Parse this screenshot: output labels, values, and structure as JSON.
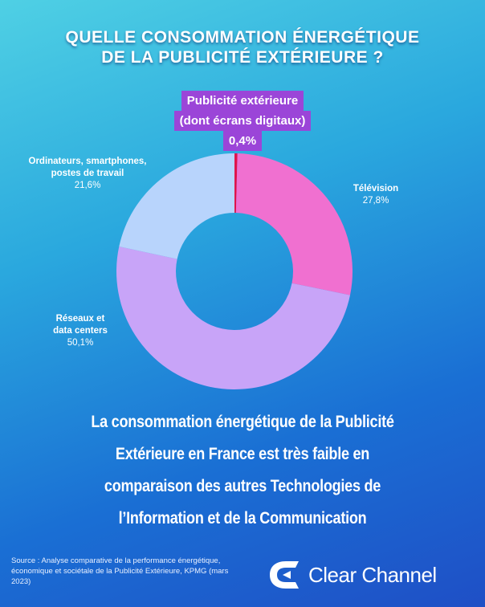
{
  "title": {
    "line1": "QUELLE CONSOMMATION ÉNERGÉTIQUE",
    "line2": "DE LA PUBLICITÉ EXTÉRIEURE ?"
  },
  "callout": {
    "line1": "Publicité extérieure",
    "line2": "(dont écrans digitaux)",
    "value": "0,4%"
  },
  "chart_data": {
    "type": "pie",
    "donut": true,
    "title": "QUELLE CONSOMMATION ÉNERGÉTIQUE DE LA PUBLICITÉ EXTÉRIEURE ?",
    "unit": "%",
    "slices": [
      {
        "label": "Publicité extérieure (dont écrans digitaux)",
        "value": 0.4,
        "value_label": "0,4%",
        "color": "#e0144c"
      },
      {
        "label": "Télévision",
        "value": 27.8,
        "value_label": "27,8%",
        "color": "#f070d0"
      },
      {
        "label": "Réseaux et data centers",
        "value": 50.1,
        "value_label": "50,1%",
        "color": "#c8a4f8"
      },
      {
        "label": "Ordinateurs, smartphones, postes de travail",
        "value": 21.6,
        "value_label": "21,6%",
        "color": "#b8d4fc"
      }
    ]
  },
  "labels": {
    "television": {
      "name": "Télévision",
      "pct": "27,8%"
    },
    "reseaux": {
      "line1": "Réseaux et",
      "line2": "data centers",
      "pct": "50,1%"
    },
    "ordinateurs": {
      "line1": "Ordinateurs, smartphones,",
      "line2": "postes de travail",
      "pct": "21,6%"
    }
  },
  "message": {
    "line1": "La consommation énergétique de la Publicité",
    "line2": "Extérieure en France est très faible en",
    "line3": "comparaison des autres Technologies de",
    "line4": "l’Information et de la Communication"
  },
  "source": {
    "text": "Source : Analyse comparative de la performance énergétique, économique et sociétale de la Publicité Extérieure, KPMG (mars 2023)"
  },
  "logo": {
    "text": "Clear Channel",
    "icon": "clear-channel-logo-mark"
  },
  "colors": {
    "background_top": "#4fd0e4",
    "background_bottom": "#1f4fc6",
    "callout_bg": "#9b45d8"
  }
}
